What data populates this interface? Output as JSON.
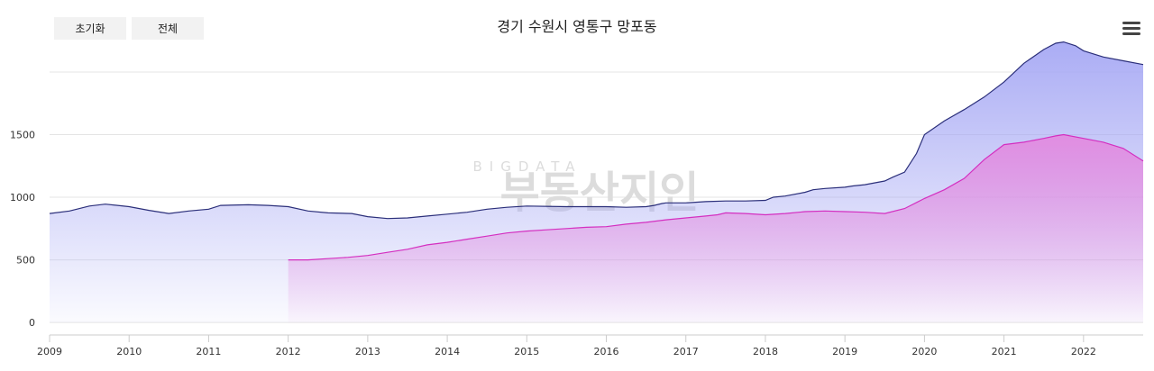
{
  "toolbar": {
    "reset_label": "초기화",
    "all_label": "전체"
  },
  "menu_icon": "hamburger-menu-icon",
  "watermark": {
    "top": "BIGDATA",
    "bottom": "부동산지인"
  },
  "colors": {
    "series1_line": "#2b2f7a",
    "series1_fill": "#a6a8f4",
    "series2_line": "#d42fc0",
    "series2_fill": "#e28ae0",
    "grid": "#e4e4e4"
  },
  "chart_data": {
    "type": "area",
    "title": "경기 수원시 영통구 망포동",
    "xlabel": "",
    "ylabel": "",
    "xlim": [
      2009.0,
      2022.75
    ],
    "ylim": [
      -100,
      2000
    ],
    "yticks": [
      0,
      500,
      1000,
      1500
    ],
    "xticks": [
      2009,
      2010,
      2011,
      2012,
      2013,
      2014,
      2015,
      2016,
      2017,
      2018,
      2019,
      2020,
      2021,
      2022
    ],
    "series": [
      {
        "name": "series1",
        "x": [
          2009.0,
          2009.25,
          2009.5,
          2009.7,
          2010.0,
          2010.25,
          2010.5,
          2010.75,
          2011.0,
          2011.15,
          2011.5,
          2011.75,
          2012.0,
          2012.25,
          2012.5,
          2012.8,
          2013.0,
          2013.25,
          2013.5,
          2013.75,
          2014.0,
          2014.25,
          2014.5,
          2014.75,
          2015.0,
          2015.5,
          2016.0,
          2016.25,
          2016.5,
          2016.6,
          2016.7,
          2016.75,
          2017.0,
          2017.25,
          2017.5,
          2017.75,
          2018.0,
          2018.1,
          2018.25,
          2018.5,
          2018.6,
          2018.75,
          2019.0,
          2019.1,
          2019.25,
          2019.5,
          2019.6,
          2019.75,
          2019.9,
          2020.0,
          2020.25,
          2020.5,
          2020.75,
          2021.0,
          2021.25,
          2021.5,
          2021.65,
          2021.75,
          2021.9,
          2022.0,
          2022.25,
          2022.5,
          2022.75
        ],
        "values": [
          870,
          890,
          930,
          945,
          925,
          895,
          870,
          890,
          905,
          935,
          940,
          935,
          925,
          890,
          875,
          870,
          845,
          830,
          835,
          850,
          865,
          880,
          905,
          920,
          930,
          925,
          925,
          920,
          925,
          935,
          950,
          955,
          955,
          965,
          970,
          970,
          975,
          1000,
          1010,
          1040,
          1060,
          1070,
          1080,
          1090,
          1100,
          1130,
          1160,
          1200,
          1350,
          1500,
          1610,
          1700,
          1800,
          1920,
          2070,
          2180,
          2230,
          2240,
          2210,
          2170,
          2120,
          2090,
          2060
        ]
      },
      {
        "name": "series2",
        "x": [
          2012.0,
          2012.25,
          2012.5,
          2012.75,
          2013.0,
          2013.25,
          2013.5,
          2013.75,
          2014.0,
          2014.25,
          2014.5,
          2014.75,
          2015.0,
          2015.25,
          2015.5,
          2015.75,
          2016.0,
          2016.25,
          2016.5,
          2016.75,
          2017.0,
          2017.25,
          2017.4,
          2017.5,
          2017.75,
          2018.0,
          2018.25,
          2018.5,
          2018.75,
          2019.0,
          2019.25,
          2019.5,
          2019.75,
          2020.0,
          2020.25,
          2020.5,
          2020.75,
          2021.0,
          2021.25,
          2021.5,
          2021.65,
          2021.75,
          2022.0,
          2022.25,
          2022.5,
          2022.75
        ],
        "values": [
          500,
          500,
          510,
          520,
          535,
          560,
          585,
          620,
          640,
          665,
          690,
          715,
          730,
          740,
          750,
          760,
          765,
          785,
          800,
          820,
          835,
          850,
          860,
          875,
          870,
          860,
          870,
          885,
          890,
          885,
          880,
          870,
          910,
          990,
          1060,
          1150,
          1300,
          1420,
          1440,
          1470,
          1490,
          1500,
          1470,
          1440,
          1390,
          1290
        ]
      }
    ]
  }
}
